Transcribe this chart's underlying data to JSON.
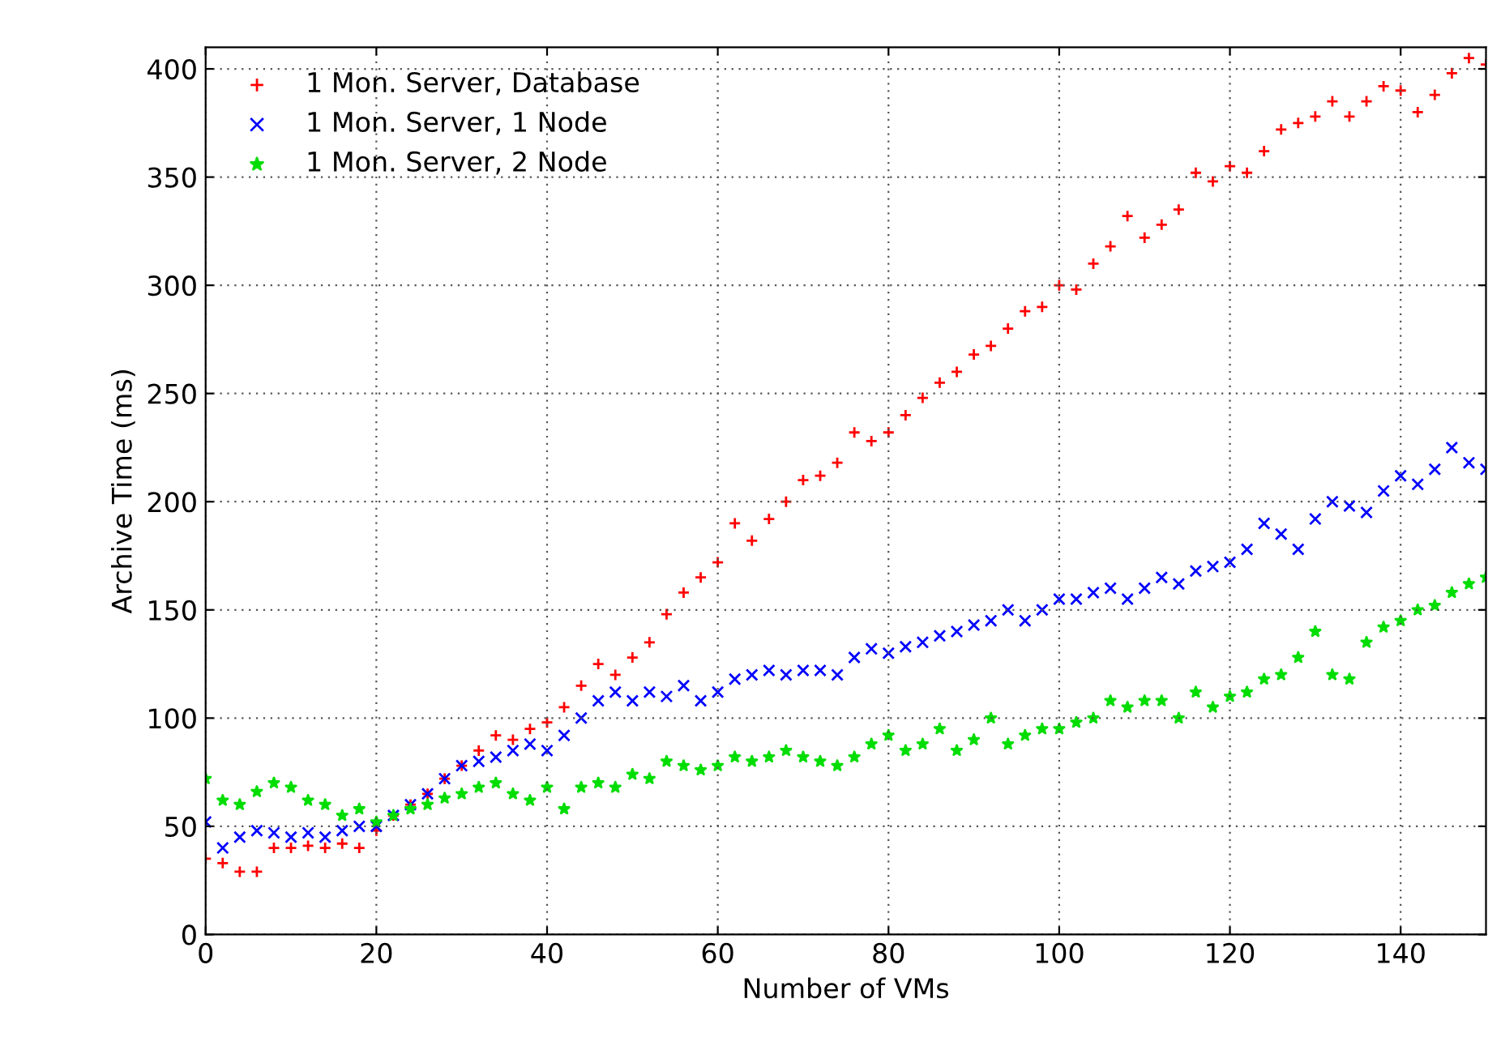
{
  "chart_data": {
    "type": "scatter",
    "xlabel": "Number of VMs",
    "ylabel": "Archive Time (ms)",
    "x": [
      0,
      2,
      4,
      6,
      8,
      10,
      12,
      14,
      16,
      18,
      20,
      22,
      24,
      26,
      28,
      30,
      32,
      34,
      36,
      38,
      40,
      42,
      44,
      46,
      48,
      50,
      52,
      54,
      56,
      58,
      60,
      62,
      64,
      66,
      68,
      70,
      72,
      74,
      76,
      78,
      80,
      82,
      84,
      86,
      88,
      90,
      92,
      94,
      96,
      98,
      100,
      102,
      104,
      106,
      108,
      110,
      112,
      114,
      116,
      118,
      120,
      122,
      124,
      126,
      128,
      130,
      132,
      134,
      136,
      138,
      140,
      142,
      144,
      146,
      148,
      150
    ],
    "series": [
      {
        "name": "1 Mon. Server, Database",
        "color": "#ff0000",
        "marker": "plus",
        "values": [
          35,
          33,
          29,
          29,
          40,
          40,
          41,
          40,
          42,
          40,
          48,
          55,
          60,
          65,
          72,
          78,
          85,
          92,
          90,
          95,
          98,
          105,
          115,
          125,
          120,
          128,
          135,
          148,
          158,
          165,
          172,
          190,
          182,
          192,
          200,
          210,
          212,
          218,
          232,
          228,
          232,
          240,
          248,
          255,
          260,
          268,
          272,
          280,
          288,
          290,
          300,
          298,
          310,
          318,
          332,
          322,
          328,
          335,
          352,
          348,
          355,
          352,
          362,
          372,
          375,
          378,
          385,
          378,
          385,
          392,
          390,
          380,
          388,
          398,
          405,
          402
        ]
      },
      {
        "name": "1 Mon. Server, 1 Node",
        "color": "#0000ff",
        "marker": "cross",
        "values": [
          52,
          40,
          45,
          48,
          47,
          45,
          47,
          45,
          48,
          50,
          50,
          55,
          60,
          65,
          72,
          78,
          80,
          82,
          85,
          88,
          85,
          92,
          100,
          108,
          112,
          108,
          112,
          110,
          115,
          108,
          112,
          118,
          120,
          122,
          120,
          122,
          122,
          120,
          128,
          132,
          130,
          133,
          135,
          138,
          140,
          143,
          145,
          150,
          145,
          150,
          155,
          155,
          158,
          160,
          155,
          160,
          165,
          162,
          168,
          170,
          172,
          178,
          190,
          185,
          178,
          192,
          200,
          198,
          195,
          205,
          212,
          208,
          215,
          225,
          218,
          215
        ]
      },
      {
        "name": "1 Mon. Server, 2 Node",
        "color": "#00dd00",
        "marker": "star",
        "values": [
          72,
          62,
          60,
          66,
          70,
          68,
          62,
          60,
          55,
          58,
          52,
          55,
          58,
          60,
          63,
          65,
          68,
          70,
          65,
          62,
          68,
          58,
          68,
          70,
          68,
          74,
          72,
          80,
          78,
          76,
          78,
          82,
          80,
          82,
          85,
          82,
          80,
          78,
          82,
          88,
          92,
          85,
          88,
          95,
          85,
          90,
          100,
          88,
          92,
          95,
          95,
          98,
          100,
          108,
          105,
          108,
          108,
          100,
          112,
          105,
          110,
          112,
          118,
          120,
          128,
          140,
          120,
          118,
          135,
          142,
          145,
          150,
          152,
          158,
          162,
          165
        ]
      }
    ],
    "xlim": [
      0,
      150
    ],
    "xticks": [
      0,
      20,
      40,
      60,
      80,
      100,
      120,
      140
    ],
    "ylim": [
      0,
      410
    ],
    "yticks": [
      0,
      50,
      100,
      150,
      200,
      250,
      300,
      350,
      400
    ],
    "grid": true,
    "legend": "top left"
  }
}
